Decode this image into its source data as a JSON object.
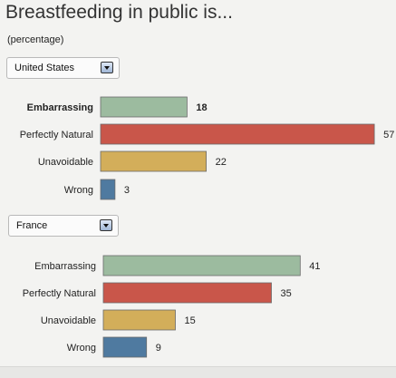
{
  "title": "Breastfeeding in public is...",
  "subtitle": "(percentage)",
  "colors": {
    "Embarrassing": "#9cbb9f",
    "Perfectly Natural": "#c9564a",
    "Unavoidable": "#d3ae5a",
    "Wrong": "#4f7aa0"
  },
  "chart_data": [
    {
      "type": "bar",
      "orientation": "horizontal",
      "selector": "United States",
      "categories": [
        "Embarrassing",
        "Perfectly Natural",
        "Unavoidable",
        "Wrong"
      ],
      "values": [
        18,
        57,
        22,
        3
      ],
      "highlighted": "Embarrassing"
    },
    {
      "type": "bar",
      "orientation": "horizontal",
      "selector": "France",
      "categories": [
        "Embarrassing",
        "Perfectly Natural",
        "Unavoidable",
        "Wrong"
      ],
      "values": [
        41,
        35,
        15,
        9
      ]
    }
  ]
}
